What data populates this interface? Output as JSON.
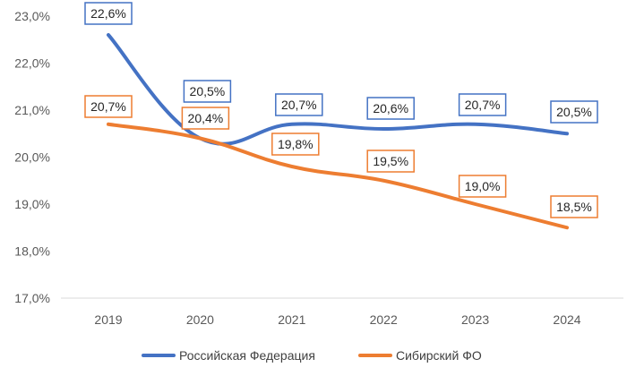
{
  "chart_data": {
    "type": "line",
    "categories": [
      "2019",
      "2020",
      "2021",
      "2022",
      "2023",
      "2024"
    ],
    "y_ticks": [
      "17,0%",
      "18,0%",
      "19,0%",
      "20,0%",
      "21,0%",
      "22,0%",
      "23,0%"
    ],
    "ylim": [
      17.0,
      23.0
    ],
    "grid": false,
    "legend_position": "bottom",
    "series": [
      {
        "name": "Российская Федерация",
        "values": [
          22.6,
          20.5,
          20.7,
          20.6,
          20.7,
          20.5
        ],
        "curve_values": [
          22.6,
          20.4,
          20.7,
          20.6,
          20.7,
          20.5
        ],
        "labels": [
          "22,6%",
          "20,5%",
          "20,7%",
          "20,6%",
          "20,7%",
          "20,5%"
        ],
        "color": "#4472C4"
      },
      {
        "name": "Сибирский ФО",
        "values": [
          20.7,
          20.4,
          19.8,
          19.5,
          19.0,
          18.5
        ],
        "labels": [
          "20,7%",
          "20,4%",
          "19,8%",
          "19,5%",
          "19,0%",
          "18,5%"
        ],
        "color": "#ED7D31"
      }
    ]
  }
}
